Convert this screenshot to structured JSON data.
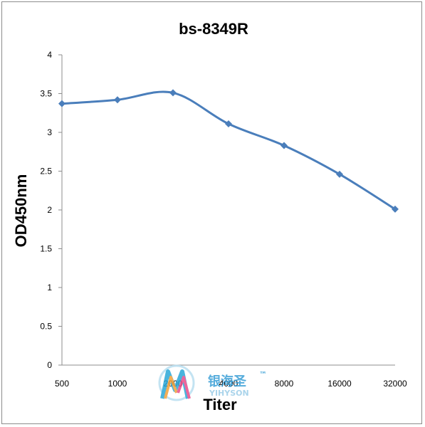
{
  "chart_data": {
    "type": "line",
    "title": "bs-8349R",
    "xlabel": "Titer",
    "ylabel": "OD450nm",
    "categories": [
      "500",
      "1000",
      "2000",
      "4000",
      "8000",
      "16000",
      "32000"
    ],
    "values": [
      3.37,
      3.42,
      3.51,
      3.11,
      2.83,
      2.46,
      2.01
    ],
    "ylim": [
      0,
      4
    ],
    "yticks": [
      "0",
      "0.5",
      "1",
      "1.5",
      "2",
      "2.5",
      "3",
      "3.5",
      "4"
    ],
    "grid": false,
    "series_color": "#4a7ebb",
    "marker": "diamond"
  },
  "watermark": {
    "text_cn": "银海圣",
    "trademark": "™",
    "text_en": "YIHYSON"
  }
}
